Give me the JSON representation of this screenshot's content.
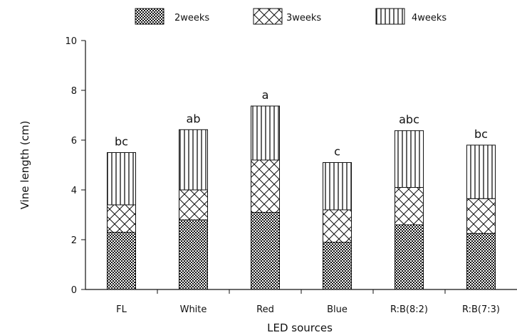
{
  "chart_data": {
    "type": "bar",
    "stacked": true,
    "categories": [
      "FL",
      "White",
      "Red",
      "Blue",
      "R:B(8:2)",
      "R:B(7:3)"
    ],
    "series": [
      {
        "name": "2weeks",
        "pattern": "checkered",
        "values": [
          2.3,
          2.8,
          3.1,
          1.9,
          2.6,
          2.25
        ]
      },
      {
        "name": "3weeks",
        "pattern": "crosshatch",
        "values": [
          1.1,
          1.2,
          2.1,
          1.3,
          1.5,
          1.4
        ]
      },
      {
        "name": "4weeks",
        "pattern": "vertical-lines",
        "values": [
          2.1,
          2.42,
          2.17,
          1.9,
          2.28,
          2.15
        ]
      }
    ],
    "totals": [
      5.5,
      6.42,
      7.37,
      5.1,
      6.38,
      5.8
    ],
    "significance_letters": [
      "bc",
      "ab",
      "a",
      "c",
      "abc",
      "bc"
    ],
    "xlabel": "LED sources",
    "ylabel": "Vine length (cm)",
    "ylim": [
      0,
      10
    ],
    "yticks": [
      "0",
      "2",
      "4",
      "6",
      "8",
      "10"
    ],
    "legend_position": "top",
    "grid": false
  }
}
